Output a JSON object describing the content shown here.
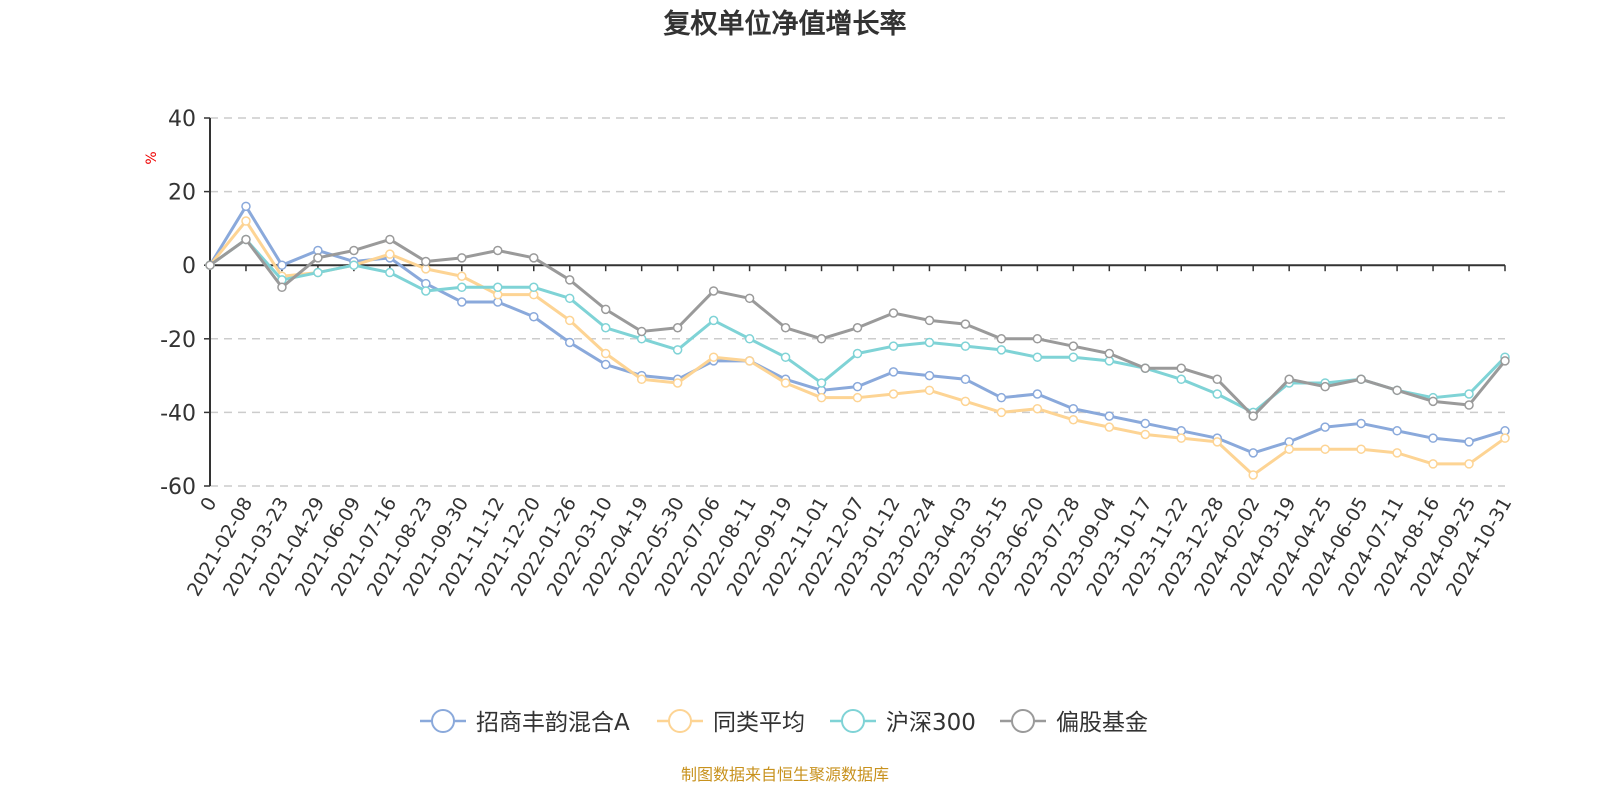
{
  "chart_data": {
    "type": "line",
    "title": "复权单位净值增长率",
    "ylabel": "%",
    "xlabel": "",
    "ylim": [
      -60,
      40
    ],
    "yticks": [
      40,
      20,
      0,
      -20,
      -40,
      -60
    ],
    "grid": true,
    "legend_position": "bottom",
    "categories": [
      "0",
      "2021-02-08",
      "2021-03-23",
      "2021-04-29",
      "2021-06-09",
      "2021-07-16",
      "2021-08-23",
      "2021-09-30",
      "2021-11-12",
      "2021-12-20",
      "2022-01-26",
      "2022-03-10",
      "2022-04-19",
      "2022-05-30",
      "2022-07-06",
      "2022-08-11",
      "2022-09-19",
      "2022-11-01",
      "2022-12-07",
      "2023-01-12",
      "2023-02-24",
      "2023-04-03",
      "2023-05-15",
      "2023-06-20",
      "2023-07-28",
      "2023-09-04",
      "2023-10-17",
      "2023-11-22",
      "2023-12-28",
      "2024-02-02",
      "2024-03-19",
      "2024-04-25",
      "2024-06-05",
      "2024-07-11",
      "2024-08-16",
      "2024-09-25",
      "2024-10-31"
    ],
    "series": [
      {
        "name": "招商丰韵混合A",
        "color": "#8aa9db",
        "values": [
          0,
          16,
          0,
          4,
          1,
          2,
          -5,
          -10,
          -10,
          -14,
          -21,
          -27,
          -30,
          -31,
          -26,
          -26,
          -31,
          -34,
          -33,
          -29,
          -30,
          -31,
          -36,
          -35,
          -39,
          -41,
          -43,
          -45,
          -47,
          -51,
          -48,
          -44,
          -43,
          -45,
          -47,
          -48,
          -45
        ]
      },
      {
        "name": "同类平均",
        "color": "#fdd494",
        "values": [
          0,
          12,
          -3,
          -2,
          0,
          3,
          -1,
          -3,
          -8,
          -8,
          -15,
          -24,
          -31,
          -32,
          -25,
          -26,
          -32,
          -36,
          -36,
          -35,
          -34,
          -37,
          -40,
          -39,
          -42,
          -44,
          -46,
          -47,
          -48,
          -57,
          -50,
          -50,
          -50,
          -51,
          -54,
          -54,
          -47
        ]
      },
      {
        "name": "沪深300",
        "color": "#7fd3d6",
        "values": [
          0,
          7,
          -4,
          -2,
          0,
          -2,
          -7,
          -6,
          -6,
          -6,
          -9,
          -17,
          -20,
          -23,
          -15,
          -20,
          -25,
          -32,
          -24,
          -22,
          -21,
          -22,
          -23,
          -25,
          -25,
          -26,
          -28,
          -31,
          -35,
          -40,
          -32,
          -32,
          -31,
          -34,
          -36,
          -35,
          -25
        ]
      },
      {
        "name": "偏股基金",
        "color": "#9a9a9a",
        "values": [
          0,
          7,
          -6,
          2,
          4,
          7,
          1,
          2,
          4,
          2,
          -4,
          -12,
          -18,
          -17,
          -7,
          -9,
          -17,
          -20,
          -17,
          -13,
          -15,
          -16,
          -20,
          -20,
          -22,
          -24,
          -28,
          -28,
          -31,
          -41,
          -31,
          -33,
          -31,
          -34,
          -37,
          -38,
          -26
        ]
      }
    ],
    "source_note": "制图数据来自恒生聚源数据库"
  }
}
